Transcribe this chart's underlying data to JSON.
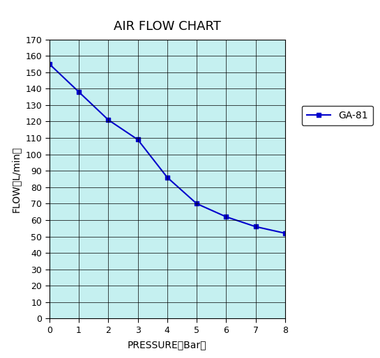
{
  "title": "AIR FLOW CHART",
  "xlabel": "PRESSURE（Bar）",
  "ylabel": "FLOW（L/min）",
  "x": [
    0,
    1,
    2,
    3,
    4,
    5,
    6,
    7,
    8
  ],
  "y": [
    155,
    138,
    121,
    109,
    86,
    70,
    62,
    56,
    52
  ],
  "xlim": [
    0,
    8
  ],
  "ylim": [
    0,
    170
  ],
  "xticks": [
    0,
    1,
    2,
    3,
    4,
    5,
    6,
    7,
    8
  ],
  "yticks": [
    0,
    10,
    20,
    30,
    40,
    50,
    60,
    70,
    80,
    90,
    100,
    110,
    120,
    130,
    140,
    150,
    160,
    170
  ],
  "line_color": "#0000CC",
  "marker": "s",
  "marker_color": "#0000CC",
  "legend_label": "GA-81",
  "background_color": "#C5F0F0",
  "grid_color": "#000000",
  "title_fontsize": 13,
  "label_fontsize": 10,
  "tick_fontsize": 9,
  "legend_fontsize": 10,
  "fig_width": 5.45,
  "fig_height": 5.14,
  "dpi": 100
}
